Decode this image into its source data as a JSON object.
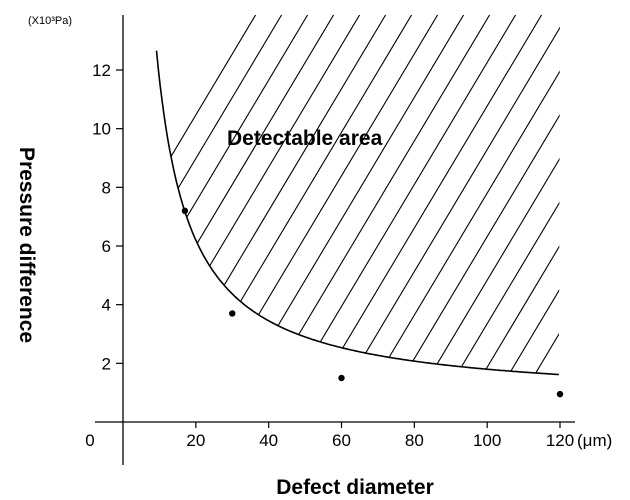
{
  "chart_data": {
    "type": "line",
    "ylabel_unit": "(X10³Pa)",
    "x_unit": "(μm)",
    "xlabel": "Defect diameter",
    "ylabel": "Pressure difference",
    "annotation": "Detectable area",
    "xlim": [
      0,
      120
    ],
    "ylim": [
      0,
      13
    ],
    "x_ticks": [
      0,
      20,
      40,
      60,
      80,
      100,
      120
    ],
    "y_ticks": [
      2,
      4,
      6,
      8,
      10,
      12
    ],
    "grid": false,
    "series": [
      {
        "x": [
          17,
          30,
          60,
          120
        ],
        "y": [
          7.2,
          3.7,
          1.5,
          0.95
        ]
      }
    ],
    "shaded_region": "above-curve",
    "colors": {
      "line": "#000000",
      "hatch": "#000000",
      "background": "#ffffff"
    }
  }
}
